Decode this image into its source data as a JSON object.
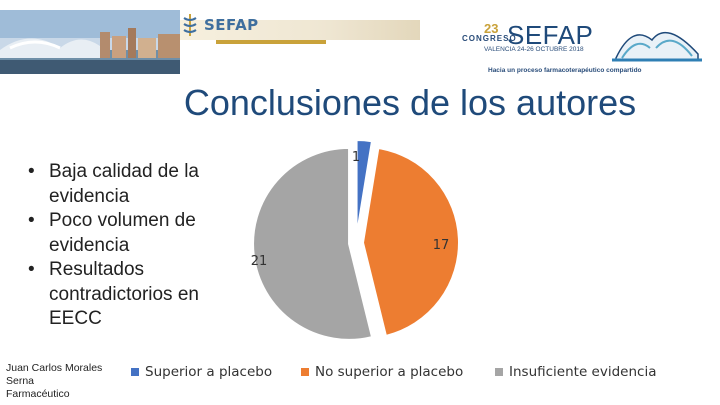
{
  "header": {
    "logo_left_text": "SEFAP",
    "congreso_number": "23",
    "congreso_label": "CONGRESO",
    "congreso_name": "SEFAP",
    "congreso_dates": "VALENCIA 24-26 OCTUBRE 2018",
    "congreso_tagline": "Hacia un proceso farmacoterapéutico compartido"
  },
  "slide": {
    "title": "Conclusiones de los autores",
    "bullets": [
      "Baja calidad de la evidencia",
      "Poco volumen de evidencia",
      "Resultados contradictorios en EECC"
    ],
    "author_lines": [
      "Juan Carlos Morales",
      "Serna",
      "Farmacéutico"
    ]
  },
  "chart_data": {
    "type": "pie",
    "exploded": true,
    "title": "",
    "slices": [
      {
        "label": "Superior a placebo",
        "value": 1,
        "color": "#4472c4"
      },
      {
        "label": "No superior a placebo",
        "value": 17,
        "color": "#ed7d31"
      },
      {
        "label": "Insuficiente evidencia",
        "value": 21,
        "color": "#a5a5a5"
      }
    ],
    "legend_position": "bottom"
  }
}
